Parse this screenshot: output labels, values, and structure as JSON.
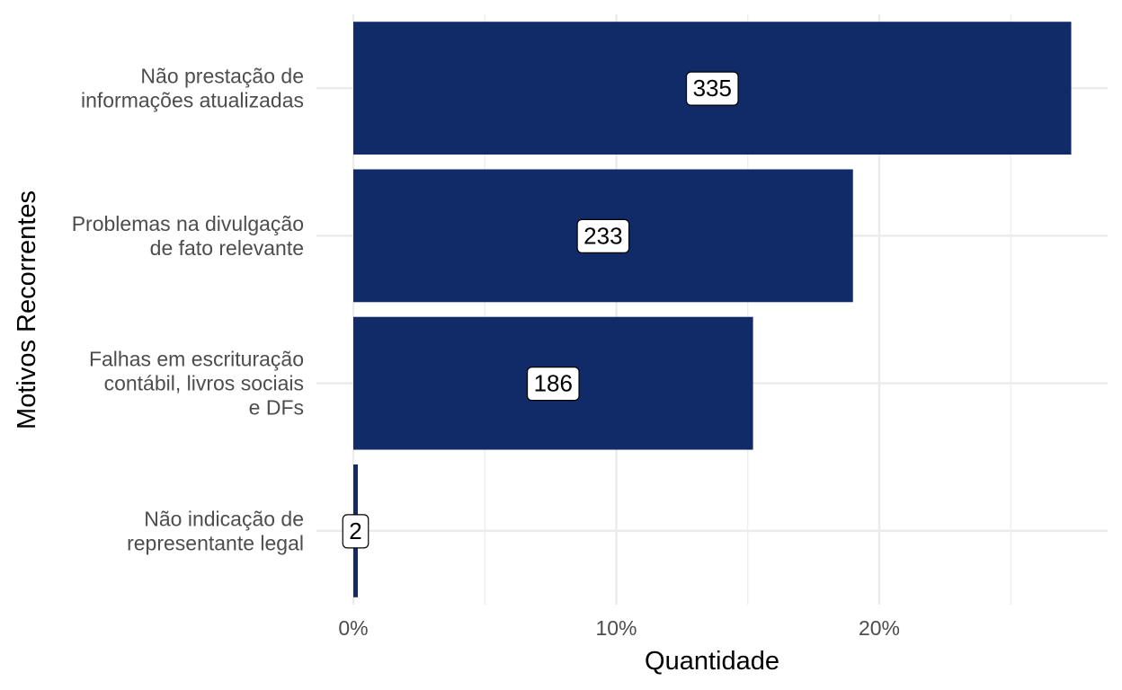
{
  "chart_data": {
    "type": "bar",
    "orientation": "horizontal",
    "categories": [
      [
        "Não prestação de",
        "informações atualizadas"
      ],
      [
        "Problemas na divulgação",
        "de fato relevante"
      ],
      [
        "Falhas em escrituração",
        "contábil, livros sociais",
        "e DFs"
      ],
      [
        "Não indicação de",
        "representante legal"
      ]
    ],
    "values": [
      335,
      233,
      186,
      2
    ],
    "percent_values": [
      27.3,
      19.0,
      15.2,
      0.16
    ],
    "data_labels": [
      "335",
      "233",
      "186",
      "2"
    ],
    "xlabel": "Quantidade",
    "ylabel": "Motivos Recorrentes",
    "x_ticks": [
      0,
      10,
      20
    ],
    "x_tick_labels": [
      "0%",
      "10%",
      "20%"
    ],
    "xlim": [
      0,
      28.7
    ],
    "grid": true,
    "legend": "none",
    "bar_color": "#112b68",
    "grid_color": "#ebebeb"
  }
}
